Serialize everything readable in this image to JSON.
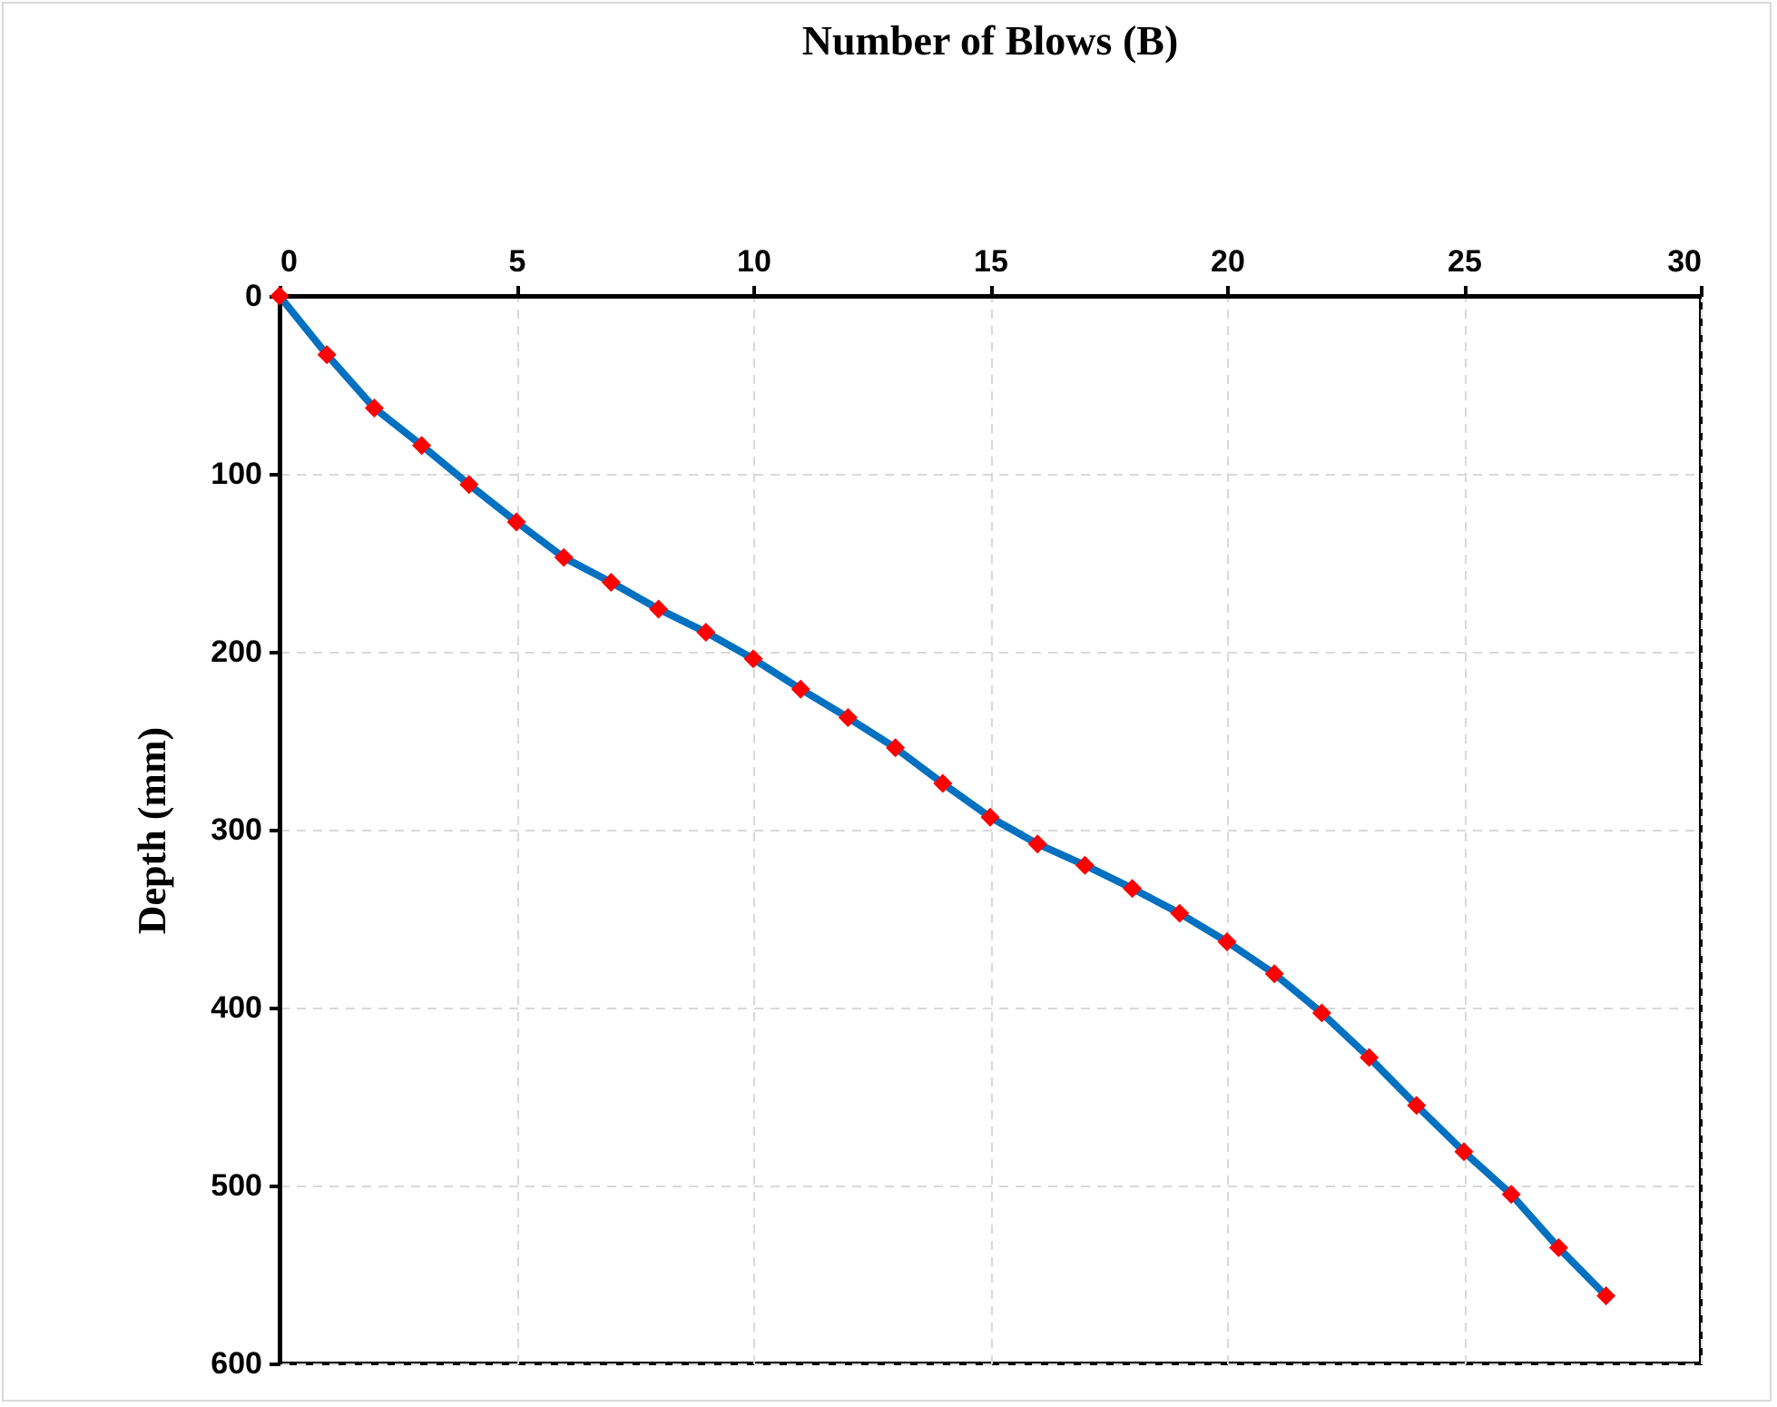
{
  "chart_data": {
    "type": "line",
    "title": "Number of Blows (B)",
    "ylabel": "Depth (mm)",
    "xlim": [
      0,
      30
    ],
    "xticks": [
      0,
      5,
      10,
      15,
      20,
      25,
      30
    ],
    "ylim": [
      600,
      0
    ],
    "yticks": [
      0,
      100,
      200,
      300,
      400,
      500,
      600
    ],
    "grid": true,
    "marker": "diamond",
    "line_style": "solid",
    "series": [
      {
        "color": "#0070c0",
        "colors": [
          "#ff0000",
          "#ff0000",
          "#ff0000",
          "#ff0000",
          "#ff0000",
          "#ff0000",
          "#ff0000",
          "#ff0000",
          "#ff0000",
          "#ff0000",
          "#ff0000",
          "#ff0000",
          "#ff0000",
          "#ff0000",
          "#ff0000",
          "#ff0000",
          "#ff0000",
          "#ff0000",
          "#ff0000",
          "#ff0000",
          "#ff0000",
          "#ff0000",
          "#ff0000",
          "#ff0000",
          "#ff0000",
          "#ff0000",
          "#ff0000",
          "#ff0000",
          "#ff0000"
        ],
        "x": [
          0,
          1,
          2,
          3,
          4,
          5,
          6,
          7,
          8,
          9,
          10,
          11,
          12,
          13,
          14,
          15,
          16,
          17,
          18,
          19,
          20,
          21,
          22,
          23,
          24,
          25,
          26,
          27,
          28
        ],
        "values": [
          0,
          33,
          63,
          84,
          106,
          127,
          147,
          161,
          176,
          189,
          204,
          221,
          237,
          254,
          274,
          293,
          308,
          320,
          333,
          347,
          363,
          381,
          403,
          428,
          455,
          481,
          505,
          535,
          562
        ]
      }
    ]
  }
}
